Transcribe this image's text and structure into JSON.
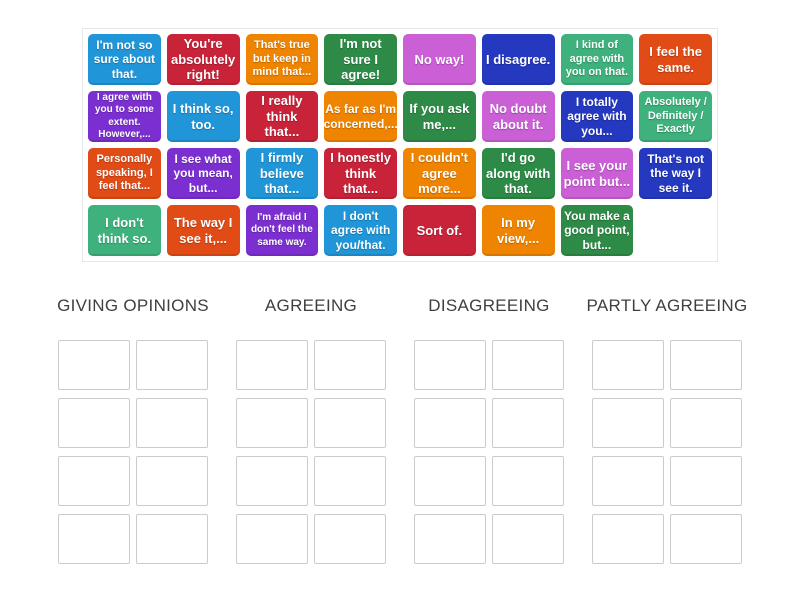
{
  "palette": {
    "blue": "#2096d8",
    "crimson": "#c82339",
    "orange": "#ef8400",
    "green": "#2e8b47",
    "light_green": "#3eb17c",
    "orchid": "#ca5fd6",
    "royal_blue": "#2438c0",
    "purple": "#7c2fd1",
    "vermillion": "#e04b16",
    "tile_text": "#ffffff",
    "header_text": "#3f3f3f",
    "slot_border": "#cbcbcb",
    "board_border": "#e7e7e7"
  },
  "board": {
    "tiles": [
      {
        "text": "I'm not so sure about that.",
        "color": "blue"
      },
      {
        "text": "You're absolutely right!",
        "color": "crimson"
      },
      {
        "text": "That's true but keep in mind that...",
        "color": "orange"
      },
      {
        "text": "I'm not sure I agree!",
        "color": "green"
      },
      {
        "text": "No way!",
        "color": "orchid"
      },
      {
        "text": "I disagree.",
        "color": "royal_blue"
      },
      {
        "text": "I kind of agree with you on that.",
        "color": "light_green"
      },
      {
        "text": "I feel the same.",
        "color": "vermillion"
      },
      {
        "text": "I agree with you to some extent. However,...",
        "color": "purple"
      },
      {
        "text": "I think so, too.",
        "color": "blue"
      },
      {
        "text": "I really think that...",
        "color": "crimson"
      },
      {
        "text": "As far as I'm concerned,...",
        "color": "orange"
      },
      {
        "text": "If you ask me,...",
        "color": "green"
      },
      {
        "text": "No doubt about it.",
        "color": "orchid"
      },
      {
        "text": "I totally agree with you...",
        "color": "royal_blue"
      },
      {
        "text": "Absolutely / Definitely / Exactly",
        "color": "light_green"
      },
      {
        "text": "Personally speaking, I feel that...",
        "color": "vermillion"
      },
      {
        "text": "I see what you mean, but...",
        "color": "purple"
      },
      {
        "text": "I firmly believe that...",
        "color": "blue"
      },
      {
        "text": "I honestly think that...",
        "color": "crimson"
      },
      {
        "text": "I couldn't agree more...",
        "color": "orange"
      },
      {
        "text": "I'd go along with that.",
        "color": "green"
      },
      {
        "text": "I see your point but...",
        "color": "orchid"
      },
      {
        "text": "That's not the way I see it.",
        "color": "royal_blue"
      },
      {
        "text": "I don't think so.",
        "color": "light_green"
      },
      {
        "text": "The way I see it,...",
        "color": "vermillion"
      },
      {
        "text": "I'm afraid I don't feel the same way.",
        "color": "purple"
      },
      {
        "text": "I don't agree with you/that.",
        "color": "blue"
      },
      {
        "text": "Sort of.",
        "color": "crimson"
      },
      {
        "text": "In my view,...",
        "color": "orange"
      },
      {
        "text": "You make a good point, but...",
        "color": "green"
      }
    ]
  },
  "groups": [
    {
      "label": "GIVING OPINIONS",
      "slot_count": 8
    },
    {
      "label": "AGREEING",
      "slot_count": 8
    },
    {
      "label": "DISAGREEING",
      "slot_count": 8
    },
    {
      "label": "PARTLY AGREEING",
      "slot_count": 8
    }
  ]
}
